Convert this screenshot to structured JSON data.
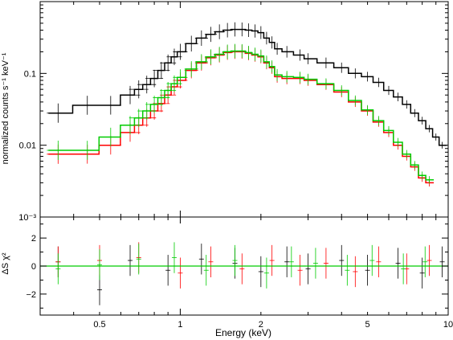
{
  "chart_data": [
    {
      "type": "scatter",
      "panel": "spectrum",
      "xlabel": "Energy (keV)",
      "ylabel": "normalized counts s⁻¹ keV⁻¹",
      "xscale": "log",
      "yscale": "log",
      "xlim": [
        0.3,
        10
      ],
      "ylim": [
        0.001,
        1.0
      ],
      "y_ticks": [
        {
          "value": 0.1,
          "label": "0.1"
        },
        {
          "value": 0.01,
          "label": "0.01"
        },
        {
          "value": 0.001,
          "label": "10⁻³"
        }
      ],
      "grid": false,
      "series": [
        {
          "color": "#000000",
          "style": "data-with-errorbars-and-step-model",
          "x": [
            0.35,
            0.45,
            0.55,
            0.65,
            0.7,
            0.75,
            0.8,
            0.85,
            0.9,
            0.95,
            1.0,
            1.1,
            1.2,
            1.3,
            1.4,
            1.5,
            1.6,
            1.7,
            1.8,
            1.9,
            2.0,
            2.1,
            2.2,
            2.3,
            2.5,
            2.8,
            3.0,
            3.5,
            4.0,
            4.5,
            5.0,
            5.5,
            6.0,
            6.5,
            7.0,
            7.5,
            8.0,
            8.5,
            9.0,
            9.5
          ],
          "y": [
            0.028,
            0.036,
            0.036,
            0.05,
            0.06,
            0.07,
            0.085,
            0.11,
            0.14,
            0.17,
            0.2,
            0.26,
            0.31,
            0.35,
            0.38,
            0.4,
            0.41,
            0.41,
            0.4,
            0.39,
            0.37,
            0.31,
            0.27,
            0.22,
            0.2,
            0.18,
            0.16,
            0.14,
            0.12,
            0.1,
            0.09,
            0.075,
            0.058,
            0.047,
            0.037,
            0.028,
            0.022,
            0.017,
            0.013,
            0.01
          ]
        },
        {
          "color": "#ff0000",
          "style": "data-with-errorbars-and-step-model",
          "x": [
            0.35,
            0.45,
            0.55,
            0.65,
            0.7,
            0.75,
            0.8,
            0.85,
            0.9,
            0.95,
            1.0,
            1.1,
            1.2,
            1.3,
            1.4,
            1.5,
            1.6,
            1.7,
            1.8,
            1.9,
            2.0,
            2.1,
            2.2,
            2.3,
            2.5,
            2.8,
            3.0,
            3.5,
            4.0,
            4.5,
            5.0,
            5.5,
            6.0,
            6.5,
            7.0,
            7.5,
            8.0,
            8.5
          ],
          "y": [
            0.0075,
            0.0075,
            0.01,
            0.015,
            0.019,
            0.024,
            0.03,
            0.038,
            0.05,
            0.065,
            0.08,
            0.11,
            0.14,
            0.165,
            0.18,
            0.195,
            0.2,
            0.2,
            0.19,
            0.18,
            0.17,
            0.14,
            0.12,
            0.09,
            0.085,
            0.085,
            0.08,
            0.07,
            0.055,
            0.04,
            0.03,
            0.021,
            0.015,
            0.01,
            0.007,
            0.005,
            0.0035,
            0.003
          ]
        },
        {
          "color": "#00cc00",
          "style": "data-with-errorbars-and-step-model",
          "x": [
            0.35,
            0.45,
            0.55,
            0.65,
            0.7,
            0.75,
            0.8,
            0.85,
            0.9,
            0.95,
            1.0,
            1.1,
            1.2,
            1.3,
            1.4,
            1.5,
            1.6,
            1.7,
            1.8,
            1.9,
            2.0,
            2.1,
            2.2,
            2.3,
            2.5,
            2.8,
            3.0,
            3.5,
            4.0,
            4.5,
            5.0,
            5.5,
            6.0,
            6.5,
            7.0,
            7.5,
            8.0,
            8.5
          ],
          "y": [
            0.0085,
            0.0085,
            0.013,
            0.019,
            0.024,
            0.03,
            0.037,
            0.046,
            0.058,
            0.072,
            0.088,
            0.115,
            0.145,
            0.17,
            0.185,
            0.2,
            0.205,
            0.205,
            0.195,
            0.185,
            0.175,
            0.145,
            0.125,
            0.095,
            0.09,
            0.088,
            0.083,
            0.072,
            0.058,
            0.042,
            0.031,
            0.022,
            0.016,
            0.011,
            0.0075,
            0.0053,
            0.0038,
            0.0033
          ]
        }
      ]
    },
    {
      "type": "scatter",
      "panel": "residuals",
      "xlabel": "Energy (keV)",
      "ylabel": "ΔS χ²",
      "xscale": "log",
      "xlim": [
        0.3,
        10
      ],
      "ylim": [
        -3.5,
        3.5
      ],
      "x_ticks": [
        {
          "value": 0.5,
          "label": "0.5"
        },
        {
          "value": 1,
          "label": "1"
        },
        {
          "value": 2,
          "label": "2"
        },
        {
          "value": 5,
          "label": "5"
        },
        {
          "value": 10,
          "label": "10"
        }
      ],
      "y_ticks": [
        {
          "value": 2,
          "label": "2"
        },
        {
          "value": 0,
          "label": "0"
        },
        {
          "value": -2,
          "label": "−2"
        }
      ],
      "zero_line": {
        "value": 0,
        "color": "#00cc00"
      },
      "series": [
        {
          "color": "#000000",
          "style": "residual-errorbars",
          "x": [
            0.35,
            0.5,
            0.65,
            0.9,
            1.2,
            1.6,
            2.0,
            2.5,
            3.0,
            4.0,
            5.0,
            6.5,
            8.0,
            9.5
          ],
          "y": [
            0.3,
            -1.7,
            0.4,
            -0.3,
            0.5,
            0.2,
            -0.4,
            0.3,
            -0.2,
            0.4,
            -0.3,
            0.2,
            -0.5,
            0.3
          ]
        },
        {
          "color": "#ff0000",
          "style": "residual-errorbars",
          "x": [
            0.35,
            0.5,
            0.7,
            1.0,
            1.3,
            1.7,
            2.2,
            2.8,
            3.5,
            4.5,
            5.5,
            7.0,
            8.5
          ],
          "y": [
            0.3,
            0.4,
            0.6,
            -0.5,
            0.3,
            -0.2,
            0.4,
            -0.3,
            0.2,
            -0.4,
            0.3,
            -0.2,
            0.4
          ]
        },
        {
          "color": "#00cc00",
          "style": "residual-errorbars",
          "x": [
            0.35,
            0.5,
            0.7,
            0.95,
            1.25,
            1.6,
            2.1,
            2.6,
            3.2,
            4.2,
            5.2,
            6.8,
            8.2
          ],
          "y": [
            -0.2,
            0.1,
            0.5,
            0.6,
            -0.3,
            0.4,
            -0.5,
            0.3,
            0.2,
            -0.3,
            0.4,
            -0.2,
            0.3
          ]
        }
      ]
    }
  ]
}
